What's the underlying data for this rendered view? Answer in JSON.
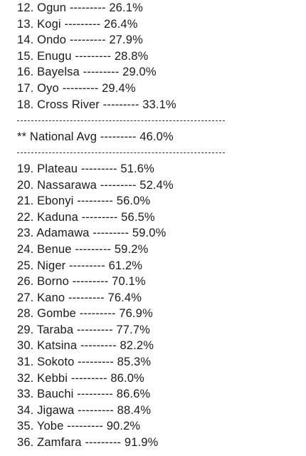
{
  "lines": [
    "12. Ogun --------- 26.1%",
    "13. Kogi --------- 26.4%",
    "14. Ondo --------- 27.9%",
    "15. Enugu --------- 28.8%",
    "16. Bayelsa --------- 29.0%",
    "17. Oyo --------- 29.4%",
    "18. Cross River --------- 33.1%",
    "",
    "** National Avg --------- 46.0%",
    "",
    "19. Plateau --------- 51.6%",
    "20. Nassarawa --------- 52.4%",
    "21. Ebonyi --------- 56.0%",
    "22. Kaduna --------- 56.5%",
    "23. Adamawa --------- 59.0%",
    "24. Benue --------- 59.2%",
    "25. Niger --------- 61.2%",
    "26. Borno --------- 70.1%",
    "27. Kano --------- 76.4%",
    "28. Gombe --------- 76.9%",
    "29. Taraba --------- 77.7%",
    "30. Katsina --------- 82.2%",
    "31. Sokoto --------- 85.3%",
    "32. Kebbi --------- 86.0%",
    "33. Bauchi --------- 86.6%",
    "34. Jigawa --------- 88.4%",
    "35. Yobe --------- 90.2%",
    "36. Zamfara --------- 91.9%"
  ]
}
